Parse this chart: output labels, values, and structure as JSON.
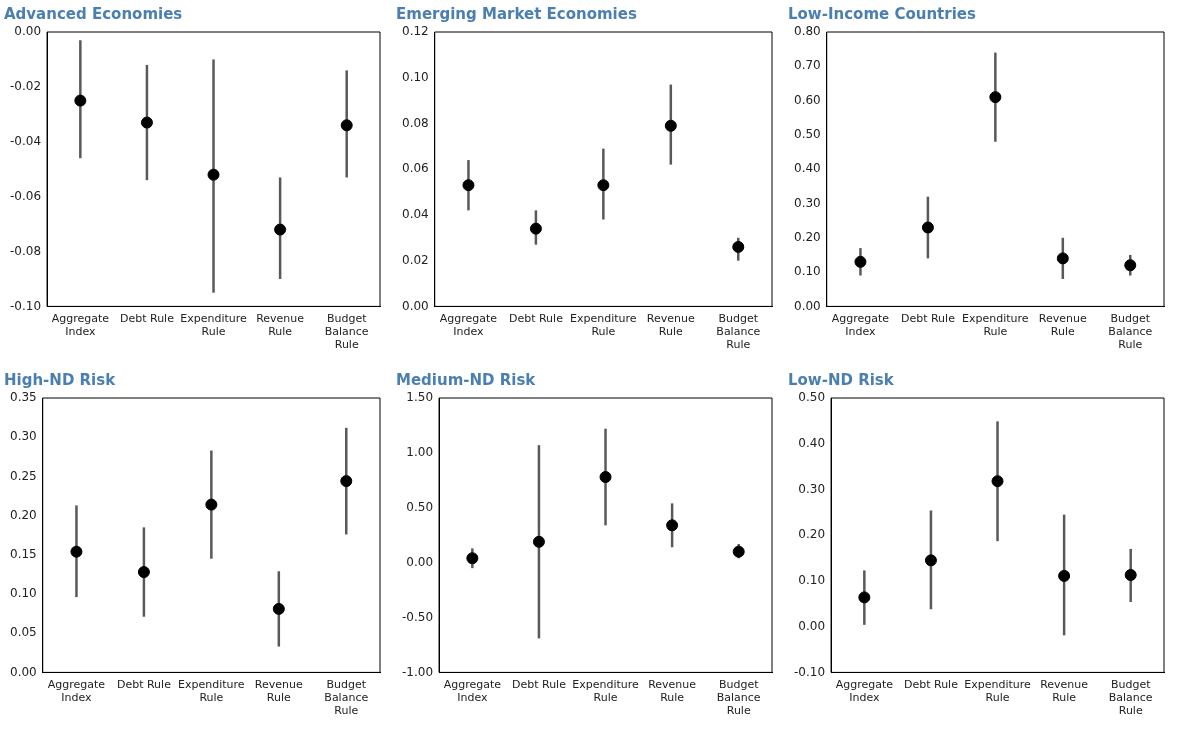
{
  "chart_data": [
    {
      "type": "scatter",
      "title": "Advanced Economies",
      "categories": [
        "Aggregate Index",
        "Debt Rule",
        "Expenditure Rule",
        "Revenue Rule",
        "Budget Balance Rule"
      ],
      "color": "#000000",
      "marker": "circle",
      "grid": false,
      "legend": false,
      "values": [
        -0.025,
        -0.033,
        -0.052,
        -0.072,
        -0.034
      ],
      "errors": [
        [
          -0.046,
          -0.003
        ],
        [
          -0.054,
          -0.012
        ],
        [
          -0.095,
          -0.01
        ],
        [
          -0.09,
          -0.053
        ],
        [
          -0.053,
          -0.014
        ]
      ],
      "ylim": [
        -0.1,
        0
      ],
      "yticks": [
        {
          "value": -0.1,
          "label": "-0.10"
        },
        {
          "value": -0.08,
          "label": "-0.08"
        },
        {
          "value": -0.06,
          "label": "-0.06"
        },
        {
          "value": -0.04,
          "label": "-0.04"
        },
        {
          "value": -0.02,
          "label": "-0.02"
        },
        {
          "value": 0,
          "label": "0.00"
        }
      ]
    },
    {
      "type": "scatter",
      "title": "Emerging Market Economies",
      "categories": [
        "Aggregate Index",
        "Debt Rule",
        "Expenditure Rule",
        "Revenue Rule",
        "Budget Balance Rule"
      ],
      "color": "#000000",
      "marker": "circle",
      "grid": false,
      "legend": false,
      "values": [
        0.053,
        0.034,
        0.053,
        0.079,
        0.026
      ],
      "errors": [
        [
          0.042,
          0.064
        ],
        [
          0.027,
          0.042
        ],
        [
          0.038,
          0.069
        ],
        [
          0.062,
          0.097
        ],
        [
          0.02,
          0.03
        ]
      ],
      "ylim": [
        0,
        0.12
      ],
      "yticks": [
        {
          "value": 0,
          "label": "0.00"
        },
        {
          "value": 0.02,
          "label": "0.02"
        },
        {
          "value": 0.04,
          "label": "0.04"
        },
        {
          "value": 0.06,
          "label": "0.06"
        },
        {
          "value": 0.08,
          "label": "0.08"
        },
        {
          "value": 0.1,
          "label": "0.10"
        },
        {
          "value": 0.12,
          "label": "0.12"
        }
      ]
    },
    {
      "type": "scatter",
      "title": "Low-Income Countries",
      "categories": [
        "Aggregate Index",
        "Debt Rule",
        "Expenditure Rule",
        "Revenue Rule",
        "Budget Balance Rule"
      ],
      "color": "#000000",
      "marker": "circle",
      "grid": false,
      "legend": false,
      "values": [
        0.13,
        0.23,
        0.61,
        0.14,
        0.12
      ],
      "errors": [
        [
          0.09,
          0.17
        ],
        [
          0.14,
          0.32
        ],
        [
          0.48,
          0.74
        ],
        [
          0.08,
          0.2
        ],
        [
          0.09,
          0.15
        ]
      ],
      "ylim": [
        0,
        0.8
      ],
      "yticks": [
        {
          "value": 0,
          "label": "0.00"
        },
        {
          "value": 0.1,
          "label": "0.10"
        },
        {
          "value": 0.2,
          "label": "0.20"
        },
        {
          "value": 0.3,
          "label": "0.30"
        },
        {
          "value": 0.4,
          "label": "0.40"
        },
        {
          "value": 0.5,
          "label": "0.50"
        },
        {
          "value": 0.6,
          "label": "0.60"
        },
        {
          "value": 0.7,
          "label": "0.70"
        },
        {
          "value": 0.8,
          "label": "0.80"
        }
      ]
    },
    {
      "type": "scatter",
      "title": "High-ND Risk",
      "categories": [
        "Aggregate Index",
        "Debt Rule",
        "Expenditure Rule",
        "Revenue Rule",
        "Budget Balance Rule"
      ],
      "color": "#000000",
      "marker": "circle",
      "grid": false,
      "legend": false,
      "values": [
        0.154,
        0.128,
        0.214,
        0.081,
        0.244
      ],
      "errors": [
        [
          0.096,
          0.213
        ],
        [
          0.071,
          0.185
        ],
        [
          0.145,
          0.283
        ],
        [
          0.033,
          0.129
        ],
        [
          0.176,
          0.312
        ]
      ],
      "ylim": [
        0,
        0.35
      ],
      "yticks": [
        {
          "value": 0,
          "label": "0.00"
        },
        {
          "value": 0.05,
          "label": "0.05"
        },
        {
          "value": 0.1,
          "label": "0.10"
        },
        {
          "value": 0.15,
          "label": "0.15"
        },
        {
          "value": 0.2,
          "label": "0.20"
        },
        {
          "value": 0.25,
          "label": "0.25"
        },
        {
          "value": 0.3,
          "label": "0.30"
        },
        {
          "value": 0.35,
          "label": "0.35"
        }
      ]
    },
    {
      "type": "scatter",
      "title": "Medium-ND Risk",
      "categories": [
        "Aggregate Index",
        "Debt Rule",
        "Expenditure Rule",
        "Revenue Rule",
        "Budget Balance Rule"
      ],
      "color": "#000000",
      "marker": "circle",
      "grid": false,
      "legend": false,
      "values": [
        0.04,
        0.19,
        0.78,
        0.34,
        0.1
      ],
      "errors": [
        [
          -0.05,
          0.13
        ],
        [
          -0.69,
          1.07
        ],
        [
          0.34,
          1.22
        ],
        [
          0.14,
          0.54
        ],
        [
          0.04,
          0.17
        ]
      ],
      "ylim": [
        -1,
        1.5
      ],
      "yticks": [
        {
          "value": -1,
          "label": "-1.00"
        },
        {
          "value": -0.5,
          "label": "-0.50"
        },
        {
          "value": 0,
          "label": "0.00"
        },
        {
          "value": 0.5,
          "label": "0.50"
        },
        {
          "value": 1,
          "label": "1.00"
        },
        {
          "value": 1.5,
          "label": "1.50"
        }
      ]
    },
    {
      "type": "scatter",
      "title": "Low-ND Risk",
      "categories": [
        "Aggregate Index",
        "Debt Rule",
        "Expenditure Rule",
        "Revenue Rule",
        "Budget Balance Rule"
      ],
      "color": "#000000",
      "marker": "circle",
      "grid": false,
      "legend": false,
      "values": [
        0.064,
        0.145,
        0.318,
        0.111,
        0.113
      ],
      "errors": [
        [
          0.004,
          0.123
        ],
        [
          0.038,
          0.254
        ],
        [
          0.187,
          0.449
        ],
        [
          -0.019,
          0.245
        ],
        [
          0.054,
          0.17
        ]
      ],
      "ylim": [
        -0.1,
        0.5
      ],
      "yticks": [
        {
          "value": -0.1,
          "label": "-0.10"
        },
        {
          "value": 0,
          "label": "0.00"
        },
        {
          "value": 0.1,
          "label": "0.10"
        },
        {
          "value": 0.2,
          "label": "0.20"
        },
        {
          "value": 0.3,
          "label": "0.30"
        },
        {
          "value": 0.4,
          "label": "0.40"
        },
        {
          "value": 0.5,
          "label": "0.50"
        }
      ]
    }
  ]
}
